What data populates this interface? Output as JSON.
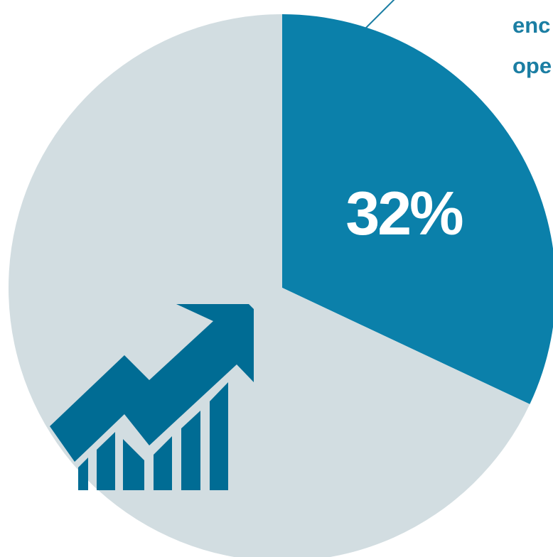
{
  "chart_data": {
    "type": "pie",
    "slices": [
      {
        "value": 32,
        "label": "32%",
        "color": "#0b80aa"
      },
      {
        "value": 68,
        "label": "",
        "color": "#d2dde1"
      }
    ],
    "callout_lines": [
      "enc",
      "ope"
    ],
    "callout_color": "#1b7ea3"
  },
  "icon": {
    "name": "growth-chart-arrow-icon",
    "color": "#006c94"
  }
}
